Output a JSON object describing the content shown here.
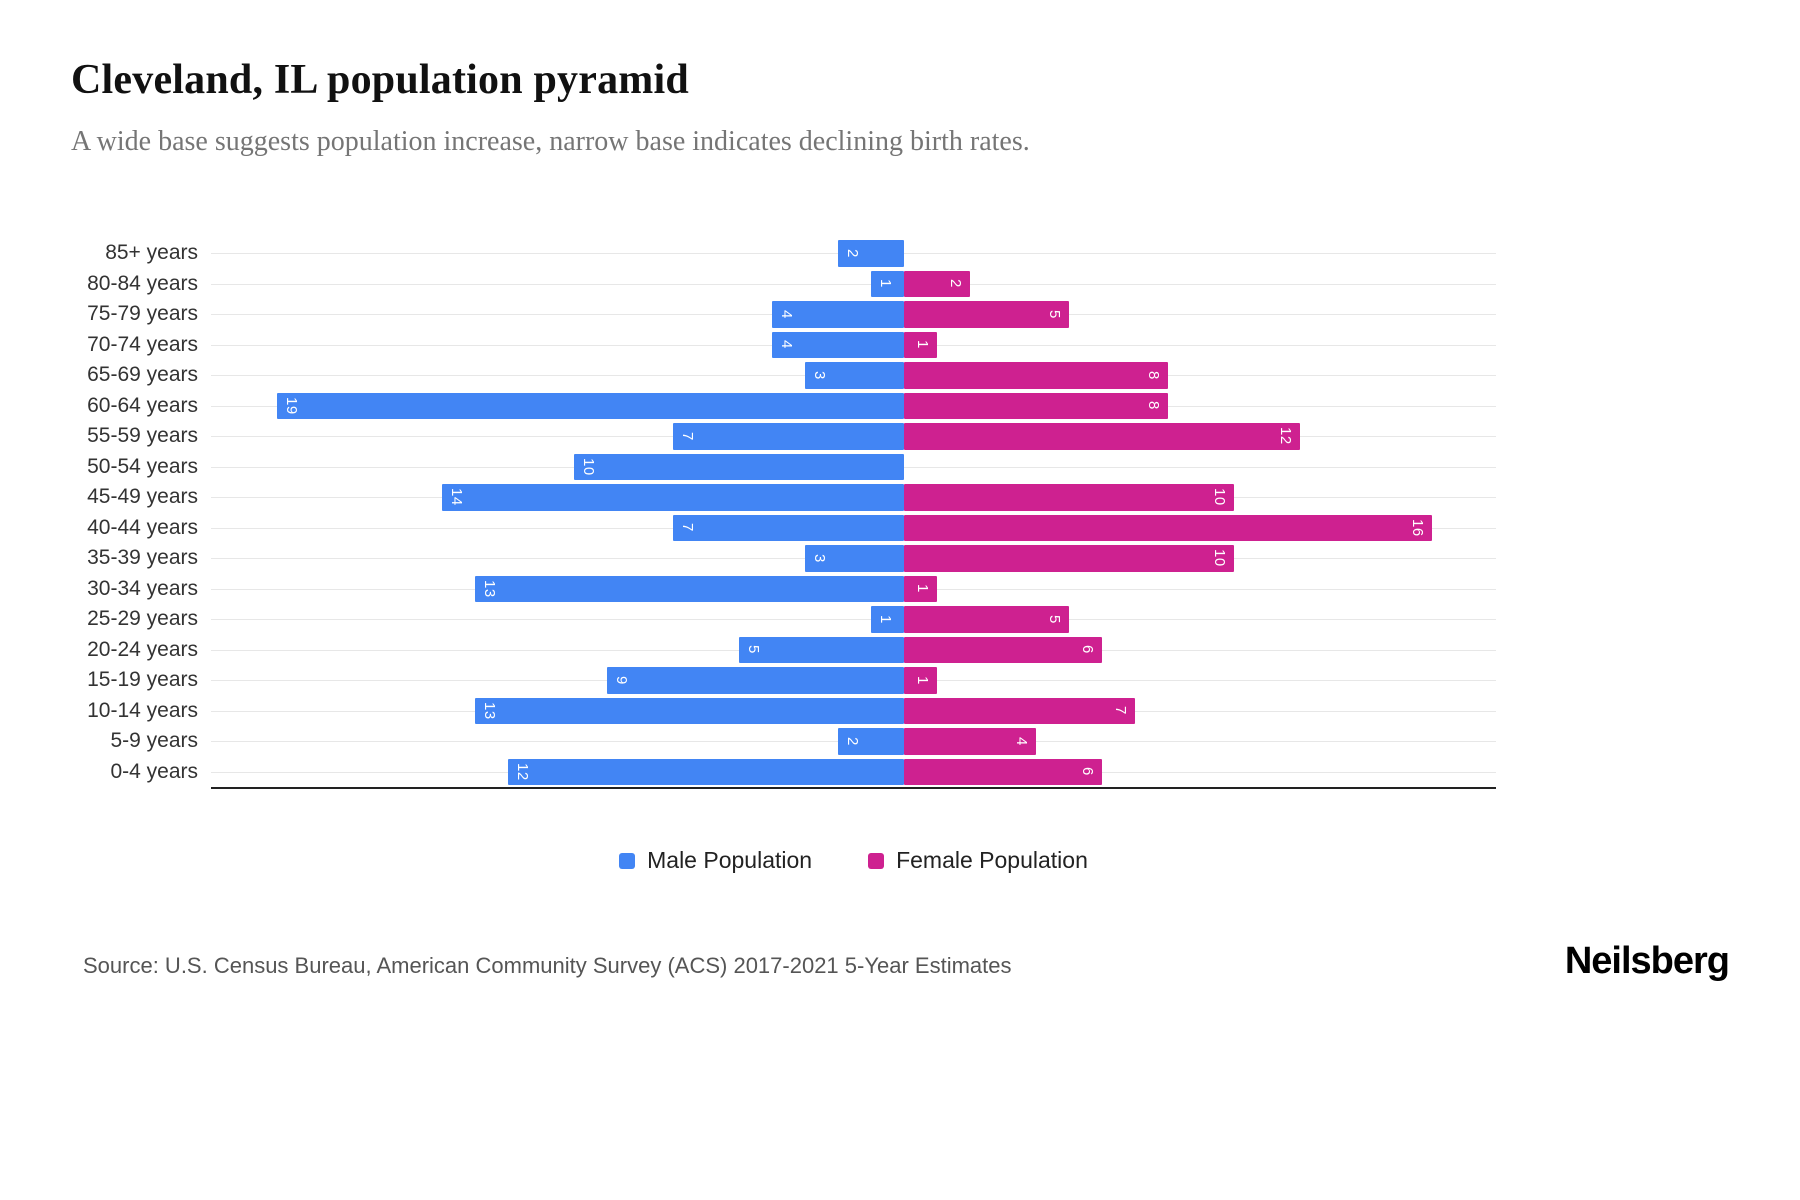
{
  "page": {
    "title": "Cleveland, IL population pyramid",
    "subtitle": "A wide base suggests population increase, narrow base indicates declining birth rates.",
    "source": "Source: U.S. Census Bureau, American Community Survey (ACS) 2017-2021 5-Year Estimates",
    "brand": "Neilsberg"
  },
  "legend": {
    "male": "Male Population",
    "female": "Female Population"
  },
  "colors": {
    "male": "#4285F4",
    "female": "#CE2190",
    "gridline": "#E7E7E7",
    "axis": "#222222"
  },
  "chart_data": {
    "type": "bar",
    "subtype": "population-pyramid",
    "orientation": "horizontal",
    "title": "Cleveland, IL population pyramid",
    "categories": [
      "85+ years",
      "80-84 years",
      "75-79 years",
      "70-74 years",
      "65-69 years",
      "60-64 years",
      "55-59 years",
      "50-54 years",
      "45-49 years",
      "40-44 years",
      "35-39 years",
      "30-34 years",
      "25-29 years",
      "20-24 years",
      "15-19 years",
      "10-14 years",
      "5-9 years",
      "0-4 years"
    ],
    "series": [
      {
        "name": "Male Population",
        "side": "left",
        "values": [
          2,
          1,
          4,
          4,
          3,
          19,
          7,
          10,
          14,
          7,
          3,
          13,
          1,
          5,
          9,
          13,
          2,
          12
        ]
      },
      {
        "name": "Female Population",
        "side": "right",
        "values": [
          0,
          2,
          5,
          1,
          8,
          8,
          12,
          0,
          10,
          16,
          10,
          1,
          5,
          6,
          1,
          7,
          4,
          6
        ]
      }
    ],
    "xlim_left_max": 21,
    "xlim_right_max": 18,
    "grid": "horizontal",
    "legend_position": "bottom",
    "value_labels": "inside-end-rotated"
  }
}
